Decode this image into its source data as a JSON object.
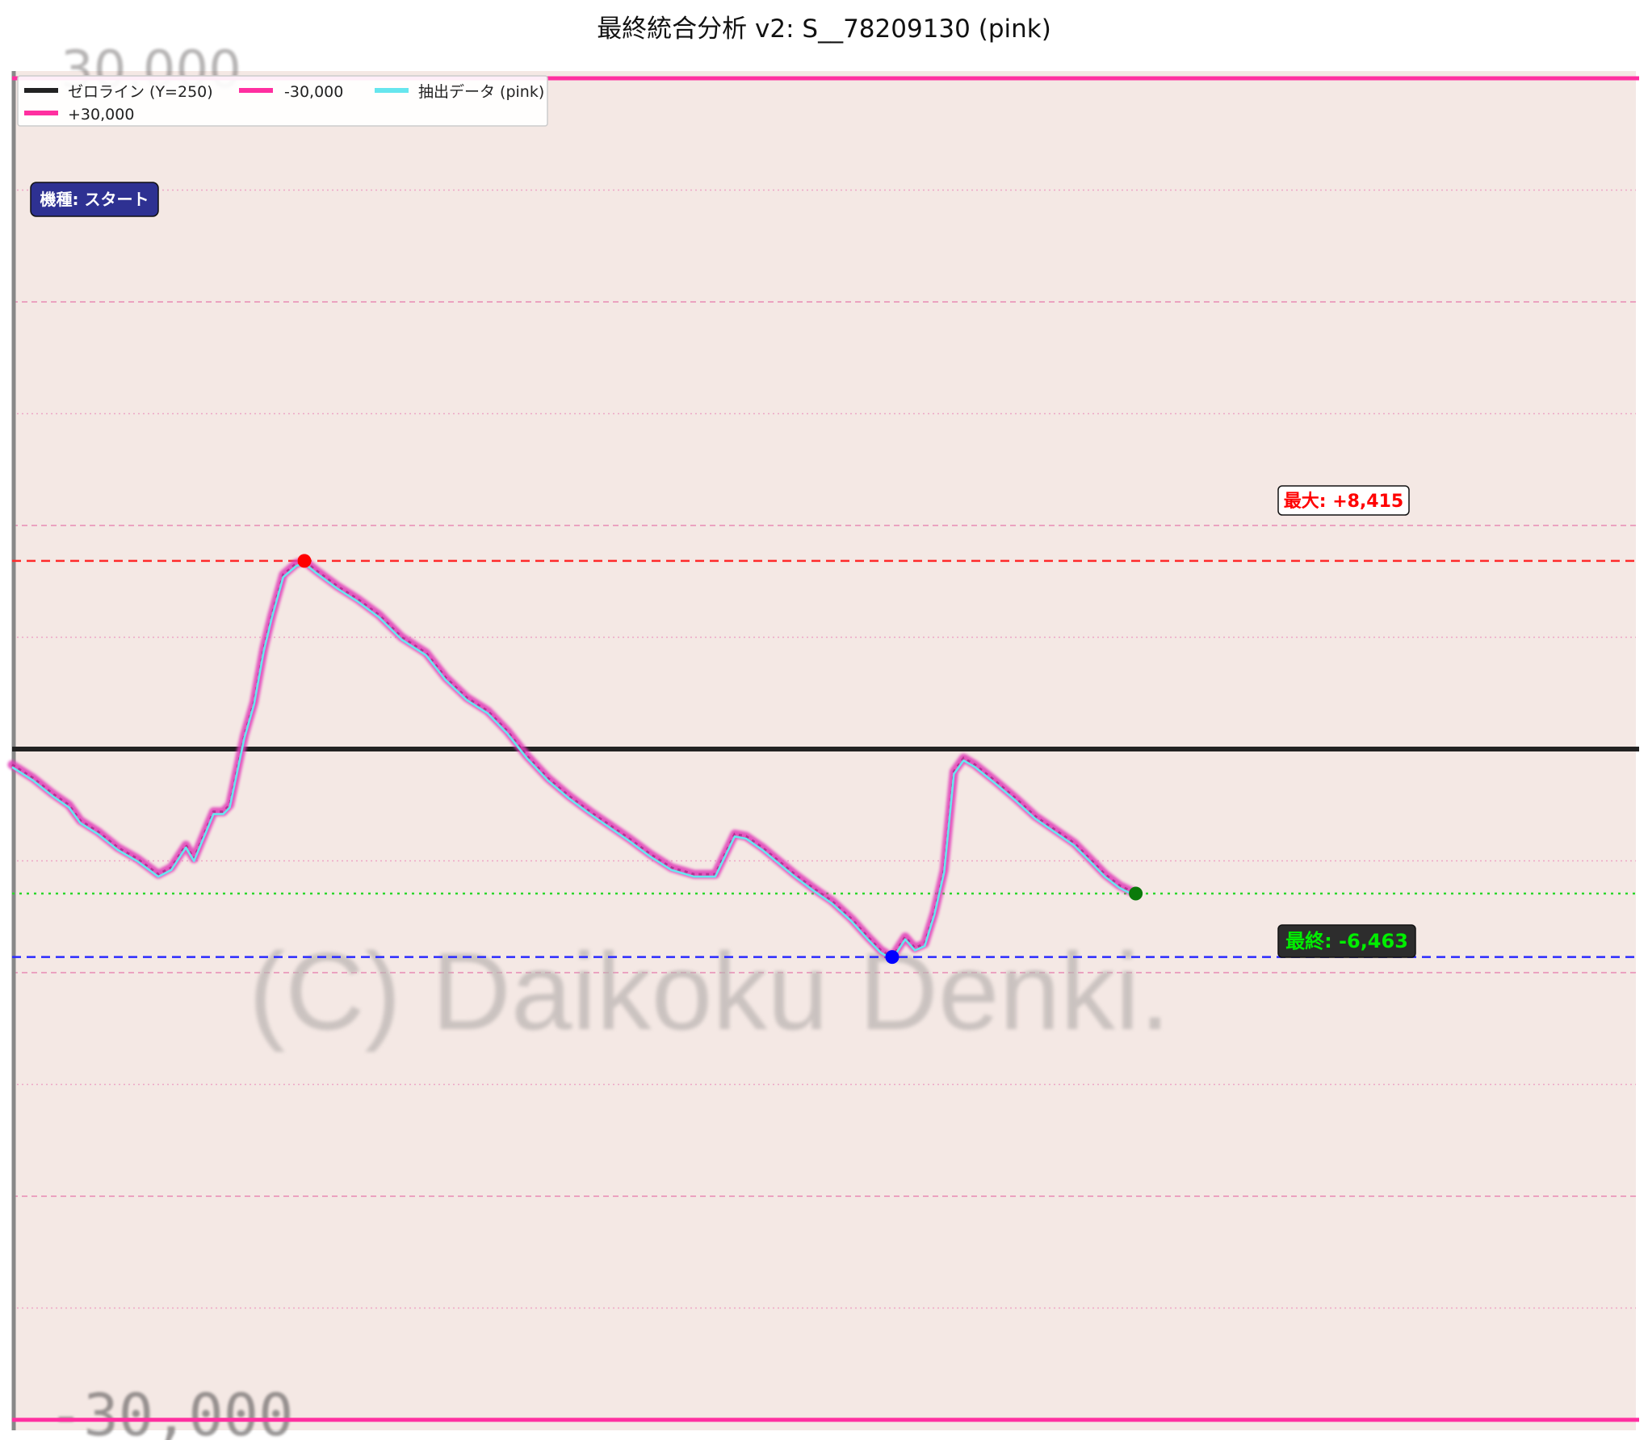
{
  "title": "最終統合分析 v2: S__78209130 (pink)",
  "chart_data": {
    "type": "line",
    "title": "最終統合分析 v2: S__78209130 (pink)",
    "ylim": [
      -30000,
      30000
    ],
    "xlim": [
      0,
      100
    ],
    "zero_line": 0,
    "top_line_value": 30000,
    "bottom_line_value": -30000,
    "legend": {
      "position": "top-left",
      "entries": [
        {
          "label": "ゼロライン (Y=250)",
          "color": "#222222"
        },
        {
          "label": "-30,000",
          "color": "#ff2fa0"
        },
        {
          "label": "抽出データ (pink)",
          "color": "#66e6ee"
        },
        {
          "label": "+30,000",
          "color": "#ff2fa0"
        }
      ]
    },
    "machine_badge": "機種: スタート",
    "background_text": [
      "30,000",
      "-30,000",
      "(C) Daikoku Denki."
    ],
    "max": {
      "label": "最大: +8,415",
      "value": 8415,
      "x": 18,
      "color": "#ff0000"
    },
    "min": {
      "value": -9300,
      "x": 54.2,
      "color": "#0000ff"
    },
    "final": {
      "label": "最終: -6,463",
      "value": -6463,
      "x": 69.2,
      "color": "#00ee00"
    },
    "series": [
      {
        "name": "抽出データ (pink)",
        "color": "#66e6ee",
        "outline_color": "#e03cb8",
        "x": [
          0,
          1.3,
          2.5,
          3.5,
          4.2,
          5.3,
          6.5,
          7.7,
          9,
          9.8,
          10.7,
          11.2,
          12.4,
          13,
          13.4,
          14.3,
          14.9,
          15.5,
          16,
          16.7,
          17.5,
          18,
          18.7,
          20,
          21.3,
          22.6,
          24,
          25.5,
          26.7,
          28,
          29.3,
          30.5,
          31.7,
          33,
          34.3,
          35.6,
          36.8,
          38,
          39.3,
          40.6,
          42,
          43.3,
          44.5,
          45.2,
          46.2,
          47.2,
          48.2,
          49.3,
          50.5,
          51.7,
          52.7,
          53.5,
          54.2,
          55,
          55.6,
          56.2,
          56.8,
          57.4,
          58,
          58.6,
          59.3,
          60.5,
          61.8,
          63,
          64.2,
          65.4,
          66.5,
          67.3,
          68.2,
          69.2
        ],
        "y": [
          -700,
          -1300,
          -2000,
          -2500,
          -3200,
          -3700,
          -4400,
          -4900,
          -5600,
          -5300,
          -4300,
          -4900,
          -2800,
          -2800,
          -2500,
          600,
          2100,
          4500,
          6000,
          7800,
          8300,
          8415,
          8000,
          7300,
          6700,
          6000,
          5000,
          4300,
          3200,
          2300,
          1700,
          800,
          -300,
          -1300,
          -2100,
          -2800,
          -3400,
          -4000,
          -4700,
          -5300,
          -5600,
          -5600,
          -3800,
          -3900,
          -4400,
          -5000,
          -5600,
          -6200,
          -6800,
          -7600,
          -8400,
          -9000,
          -9300,
          -8400,
          -8900,
          -8700,
          -7300,
          -5400,
          -1000,
          -400,
          -700,
          -1400,
          -2200,
          -3000,
          -3600,
          -4200,
          -5000,
          -5600,
          -6100,
          -6463
        ]
      }
    ],
    "horizontal_lines": [
      {
        "y": 8415,
        "color": "#ff2a2a",
        "style": "dashed"
      },
      {
        "y": -9300,
        "color": "#2b2bff",
        "style": "dashed"
      },
      {
        "y": -6463,
        "color": "#2bd62b",
        "style": "dotted"
      }
    ]
  }
}
